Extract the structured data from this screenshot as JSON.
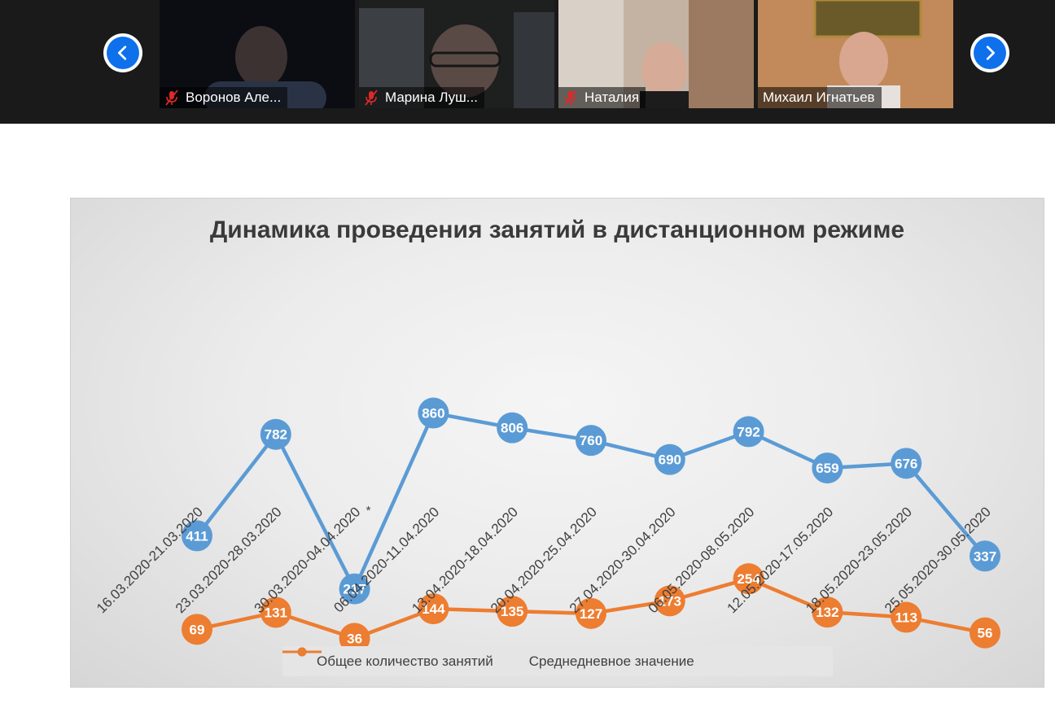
{
  "meeting": {
    "participants": [
      {
        "name": "Воронов Але...",
        "muted": true
      },
      {
        "name": "Марина Луш...",
        "muted": true
      },
      {
        "name": "Наталия",
        "muted": true
      },
      {
        "name": "Михаил Игнатьев",
        "muted": false
      }
    ],
    "nav": {
      "prev_icon": "chevron-left-icon",
      "next_icon": "chevron-right-icon",
      "accent": "#0e71eb"
    }
  },
  "chart_data": {
    "type": "line",
    "title": "Динамика проведения занятий в дистанционном режиме",
    "categories": [
      "16.03.2020-21.03.2020",
      "23.03.2020-28.03.2020",
      "30.03.2020-04.04.2020",
      "06.04.2020-11.04.2020",
      "13.04.2020-18.04.2020",
      "20.04.2020-25.04.2020",
      "27.04.2020-30.04.2020",
      "06.05.2020-08.05.2020",
      "12.05.2020-17.05.2020",
      "18.05.2020-23.05.2020",
      "25.05.2020-30.05.2020"
    ],
    "category_note": {
      "index": 2,
      "text": "*"
    },
    "series": [
      {
        "name": "Общее количество занятий",
        "color": "#5b9bd5",
        "values": [
          411,
          782,
          217,
          860,
          806,
          760,
          690,
          792,
          659,
          676,
          337
        ]
      },
      {
        "name": "Среднедневное значение",
        "color": "#ed7d31",
        "values": [
          69,
          131,
          36,
          144,
          135,
          127,
          173,
          254,
          132,
          113,
          56
        ]
      }
    ],
    "legend_position": "bottom",
    "grid": false,
    "data_labels": true
  }
}
